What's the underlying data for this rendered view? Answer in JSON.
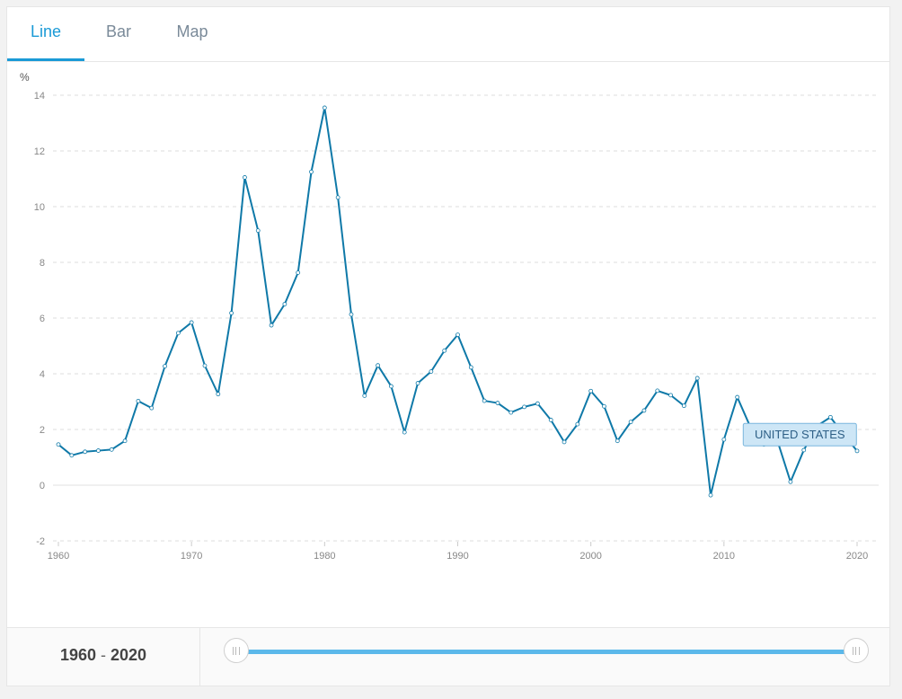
{
  "tabs": [
    {
      "label": "Line",
      "active": true
    },
    {
      "label": "Bar",
      "active": false
    },
    {
      "label": "Map",
      "active": false
    }
  ],
  "footer": {
    "range_start": "1960",
    "range_separator": "-",
    "range_end": "2020"
  },
  "colors": {
    "line": "#0f79a8",
    "accent": "#1a9ad6",
    "slider": "#5bb8ea",
    "label_bg": "#cde6f6",
    "label_border": "#7ab6dd"
  },
  "chart_data": {
    "type": "line",
    "ylabel": "%",
    "ylim": [
      -2,
      14
    ],
    "yticks": [
      -2,
      0,
      2,
      4,
      6,
      8,
      10,
      12,
      14
    ],
    "xlim": [
      1960,
      2020
    ],
    "xticks": [
      1960,
      1970,
      1980,
      1990,
      2000,
      2010,
      2020
    ],
    "grid": true,
    "series": [
      {
        "name": "UNITED STATES",
        "x": [
          1960,
          1961,
          1962,
          1963,
          1964,
          1965,
          1966,
          1967,
          1968,
          1969,
          1970,
          1971,
          1972,
          1973,
          1974,
          1975,
          1976,
          1977,
          1978,
          1979,
          1980,
          1981,
          1982,
          1983,
          1984,
          1985,
          1986,
          1987,
          1988,
          1989,
          1990,
          1991,
          1992,
          1993,
          1994,
          1995,
          1996,
          1997,
          1998,
          1999,
          2000,
          2001,
          2002,
          2003,
          2004,
          2005,
          2006,
          2007,
          2008,
          2009,
          2010,
          2011,
          2012,
          2013,
          2014,
          2015,
          2016,
          2017,
          2018,
          2019,
          2020
        ],
        "values": [
          1.46,
          1.07,
          1.2,
          1.24,
          1.28,
          1.59,
          3.02,
          2.77,
          4.27,
          5.46,
          5.84,
          4.29,
          3.27,
          6.18,
          11.05,
          9.14,
          5.74,
          6.5,
          7.63,
          11.25,
          13.55,
          10.33,
          6.13,
          3.21,
          4.3,
          3.55,
          1.9,
          3.66,
          4.08,
          4.83,
          5.4,
          4.23,
          3.03,
          2.95,
          2.61,
          2.81,
          2.93,
          2.34,
          1.55,
          2.19,
          3.38,
          2.83,
          1.59,
          2.27,
          2.68,
          3.39,
          3.23,
          2.85,
          3.84,
          -0.36,
          1.64,
          3.16,
          2.07,
          1.46,
          1.62,
          0.12,
          1.26,
          2.13,
          2.44,
          1.81,
          1.23
        ]
      }
    ]
  }
}
